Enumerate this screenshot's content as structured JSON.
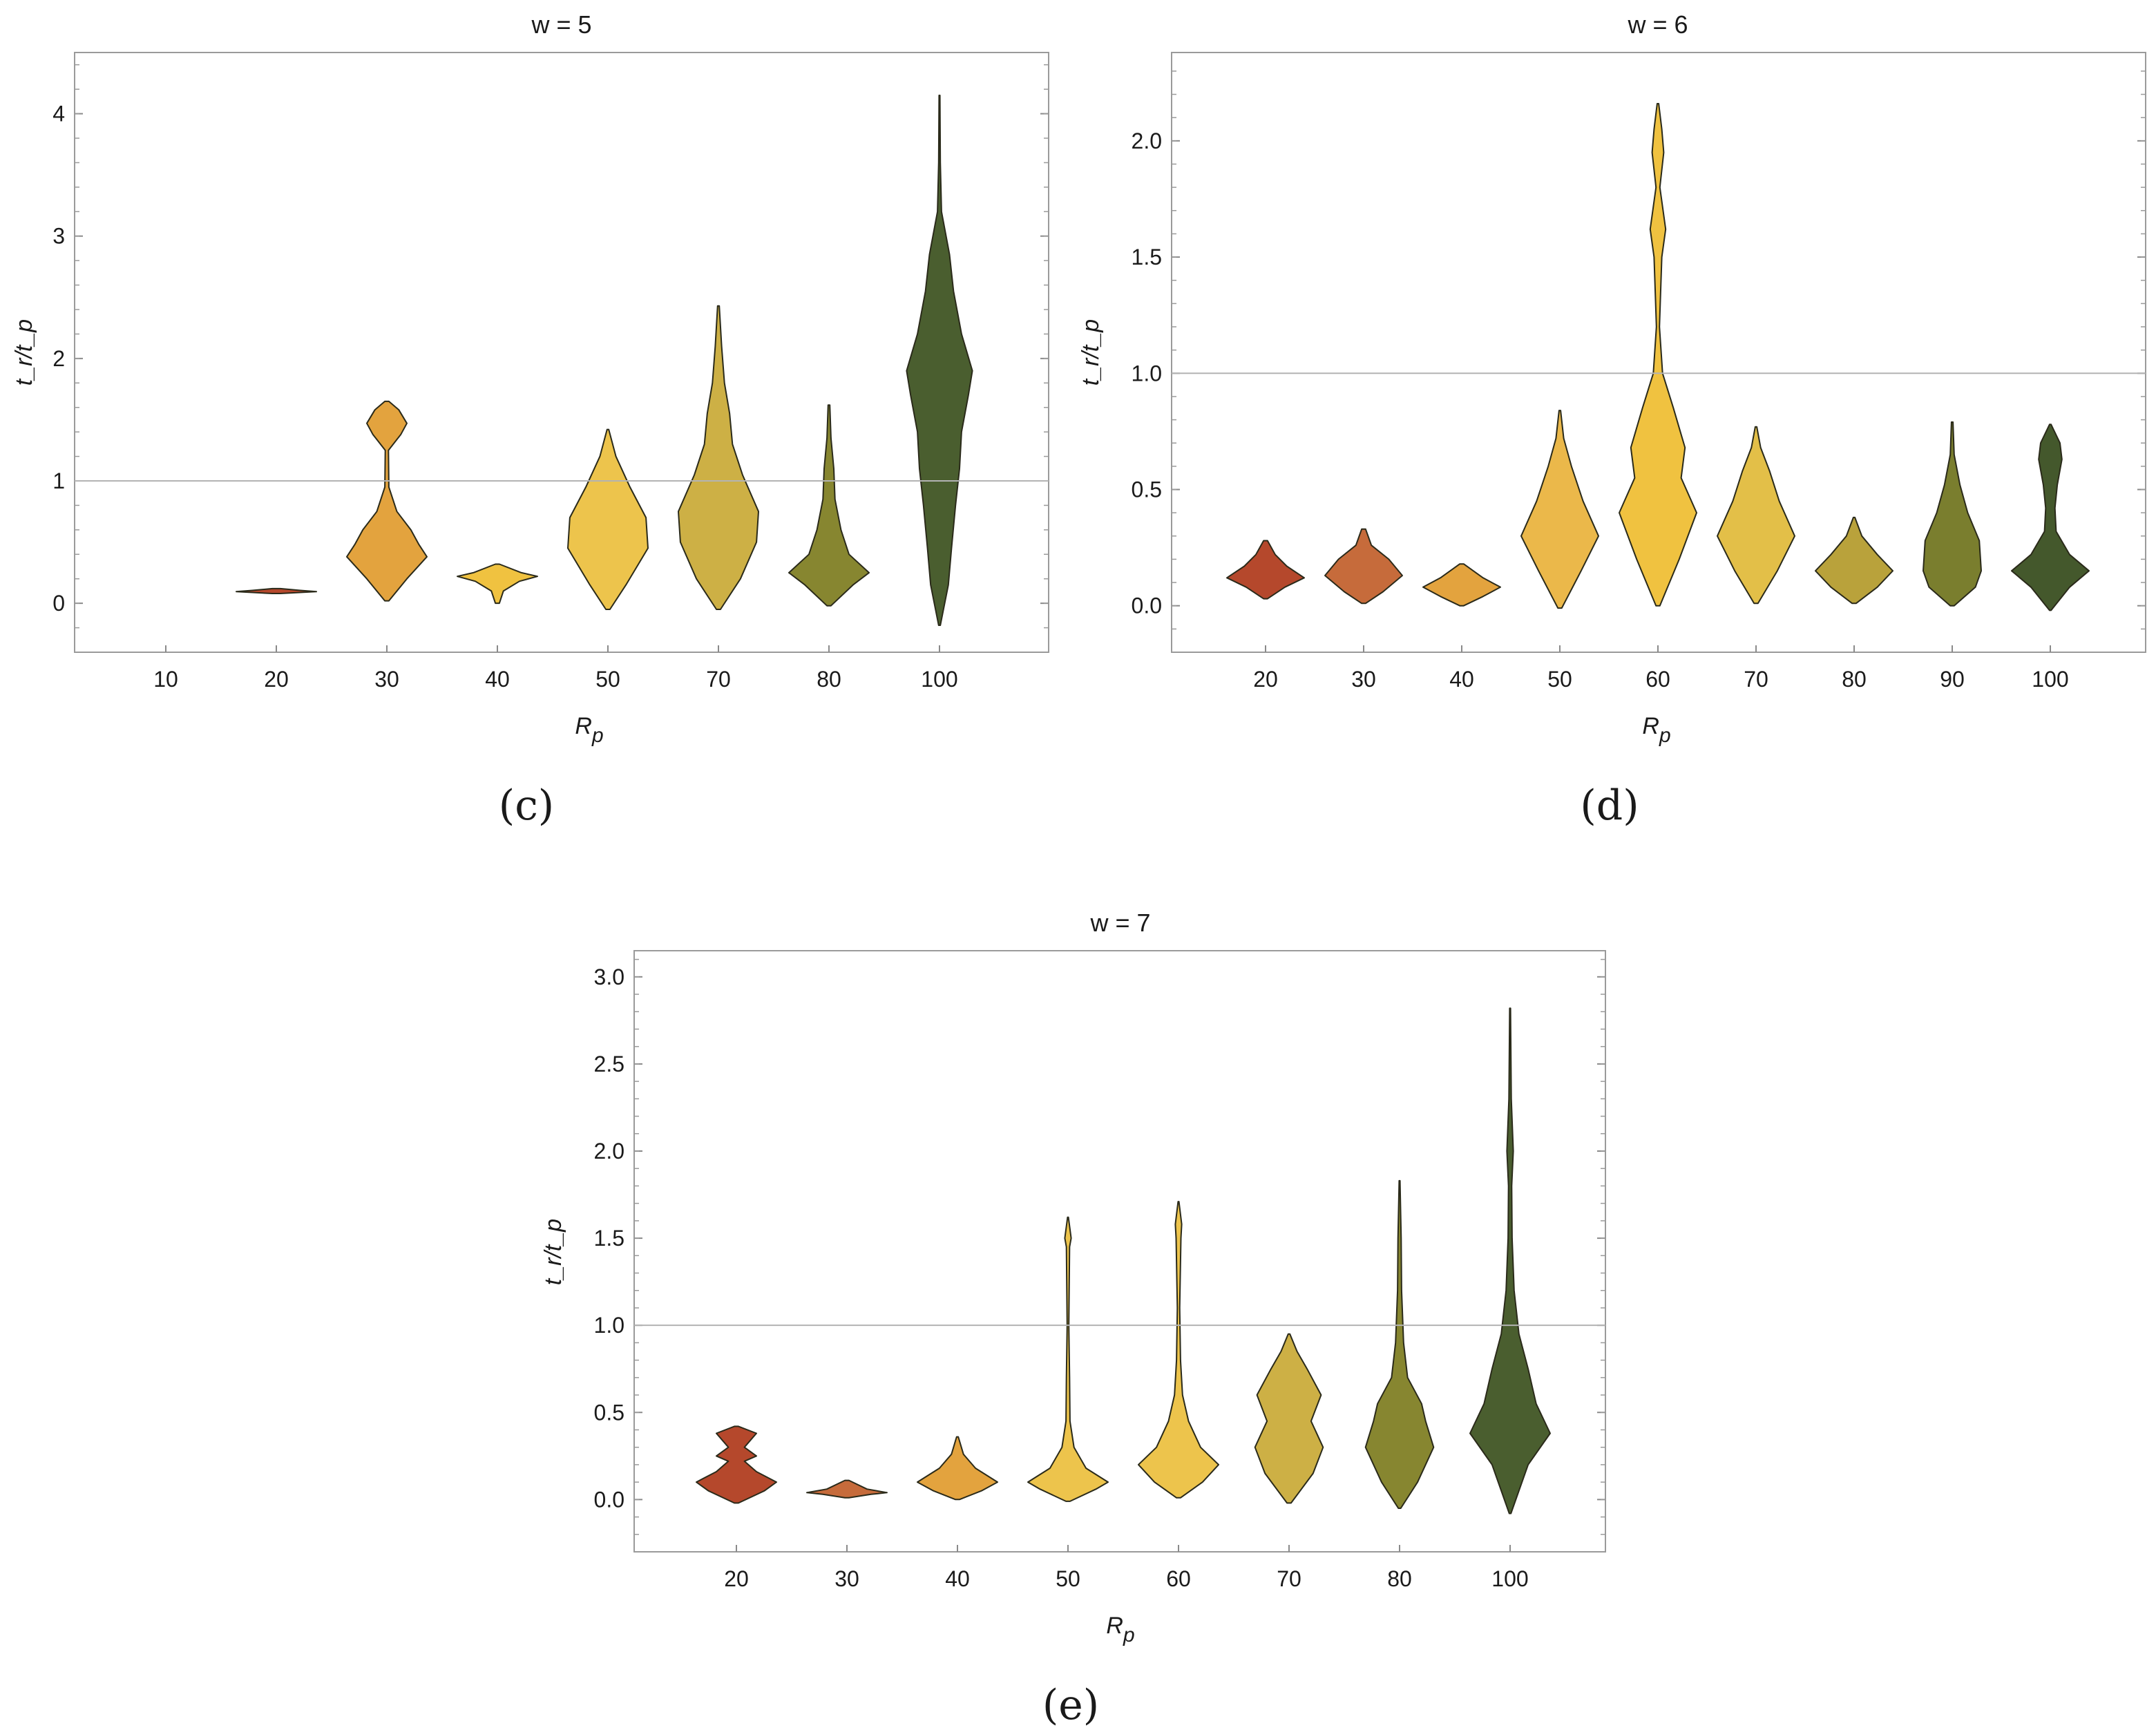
{
  "chart_data": [
    {
      "type": "violin",
      "panel": "(c)",
      "title": "w = 5",
      "xlabel": "R",
      "xlabel_sub": "p",
      "ylabel": "t_r/t_p",
      "ylim": [
        -0.4,
        4.5
      ],
      "yticks": [
        0,
        1,
        2,
        3,
        4
      ],
      "ytick_labels": [
        "0",
        "1",
        "2",
        "3",
        "4"
      ],
      "reference_line": 1,
      "categories": [
        "10",
        "20",
        "30",
        "40",
        "50",
        "70",
        "80",
        "100"
      ],
      "colors": [
        null,
        "#B5482C",
        "#E3A33E",
        "#F0C240",
        "#EDC44C",
        "#CDB045",
        "#878630",
        "#4A5E2F"
      ],
      "violins": [
        null,
        {
          "min": 0.08,
          "max": 0.12,
          "profile": [
            [
              0.08,
              0.1
            ],
            [
              0.095,
              1.0
            ],
            [
              0.105,
              0.6
            ],
            [
              0.12,
              0.1
            ]
          ]
        },
        {
          "min": 0.02,
          "max": 1.65,
          "profile": [
            [
              0.02,
              0.05
            ],
            [
              0.2,
              0.5
            ],
            [
              0.38,
              1.0
            ],
            [
              0.48,
              0.8
            ],
            [
              0.6,
              0.6
            ],
            [
              0.75,
              0.25
            ],
            [
              0.95,
              0.05
            ],
            [
              1.25,
              0.04
            ],
            [
              1.38,
              0.35
            ],
            [
              1.47,
              0.5
            ],
            [
              1.58,
              0.3
            ],
            [
              1.65,
              0.05
            ]
          ]
        },
        {
          "min": 0.0,
          "max": 0.32,
          "profile": [
            [
              0.0,
              0.05
            ],
            [
              0.1,
              0.15
            ],
            [
              0.18,
              0.55
            ],
            [
              0.22,
              1.0
            ],
            [
              0.25,
              0.6
            ],
            [
              0.32,
              0.05
            ]
          ]
        },
        {
          "min": -0.05,
          "max": 1.42,
          "profile": [
            [
              -0.05,
              0.05
            ],
            [
              0.15,
              0.45
            ],
            [
              0.45,
              1.0
            ],
            [
              0.7,
              0.95
            ],
            [
              0.95,
              0.55
            ],
            [
              1.2,
              0.2
            ],
            [
              1.42,
              0.02
            ]
          ]
        },
        {
          "min": -0.05,
          "max": 2.43,
          "profile": [
            [
              -0.05,
              0.05
            ],
            [
              0.2,
              0.55
            ],
            [
              0.5,
              0.95
            ],
            [
              0.75,
              1.0
            ],
            [
              1.05,
              0.6
            ],
            [
              1.3,
              0.35
            ],
            [
              1.55,
              0.28
            ],
            [
              1.8,
              0.15
            ],
            [
              2.1,
              0.08
            ],
            [
              2.43,
              0.02
            ]
          ]
        },
        {
          "min": -0.02,
          "max": 1.62,
          "profile": [
            [
              -0.02,
              0.05
            ],
            [
              0.15,
              0.6
            ],
            [
              0.25,
              1.0
            ],
            [
              0.4,
              0.5
            ],
            [
              0.6,
              0.3
            ],
            [
              0.85,
              0.15
            ],
            [
              1.1,
              0.12
            ],
            [
              1.35,
              0.05
            ],
            [
              1.62,
              0.02
            ]
          ]
        },
        {
          "min": -0.18,
          "max": 4.15,
          "profile": [
            [
              -0.18,
              0.02
            ],
            [
              0.15,
              0.22
            ],
            [
              0.45,
              0.3
            ],
            [
              0.8,
              0.4
            ],
            [
              1.1,
              0.5
            ],
            [
              1.4,
              0.55
            ],
            [
              1.7,
              0.72
            ],
            [
              1.9,
              0.82
            ],
            [
              2.2,
              0.55
            ],
            [
              2.55,
              0.35
            ],
            [
              2.85,
              0.25
            ],
            [
              3.2,
              0.05
            ],
            [
              3.6,
              0.02
            ],
            [
              4.15,
              0.01
            ]
          ]
        }
      ]
    },
    {
      "type": "violin",
      "panel": "(d)",
      "title": "w = 6",
      "xlabel": "R",
      "xlabel_sub": "p",
      "ylabel": "t_r/t_p",
      "ylim": [
        -0.2,
        2.38
      ],
      "yticks": [
        0.0,
        0.5,
        1.0,
        1.5,
        2.0
      ],
      "ytick_labels": [
        "0.0",
        "0.5",
        "1.0",
        "1.5",
        "2.0"
      ],
      "reference_line": 1.0,
      "categories": [
        "20",
        "30",
        "40",
        "50",
        "60",
        "70",
        "80",
        "90",
        "100"
      ],
      "colors": [
        "#B5482C",
        "#C66B3B",
        "#E3A33E",
        "#EBB84A",
        "#F0C240",
        "#E3BF48",
        "#B9A23B",
        "#7A7E2E",
        "#44582C"
      ],
      "violins": [
        {
          "min": 0.03,
          "max": 0.28,
          "profile": [
            [
              0.03,
              0.05
            ],
            [
              0.08,
              0.5
            ],
            [
              0.12,
              1.0
            ],
            [
              0.17,
              0.55
            ],
            [
              0.22,
              0.25
            ],
            [
              0.28,
              0.05
            ]
          ]
        },
        {
          "min": 0.01,
          "max": 0.33,
          "profile": [
            [
              0.01,
              0.05
            ],
            [
              0.06,
              0.5
            ],
            [
              0.13,
              1.0
            ],
            [
              0.2,
              0.65
            ],
            [
              0.26,
              0.2
            ],
            [
              0.33,
              0.05
            ]
          ]
        },
        {
          "min": 0.0,
          "max": 0.18,
          "profile": [
            [
              0.0,
              0.05
            ],
            [
              0.04,
              0.55
            ],
            [
              0.08,
              1.0
            ],
            [
              0.12,
              0.55
            ],
            [
              0.18,
              0.05
            ]
          ]
        },
        {
          "min": -0.01,
          "max": 0.84,
          "profile": [
            [
              -0.01,
              0.05
            ],
            [
              0.15,
              0.55
            ],
            [
              0.3,
              1.0
            ],
            [
              0.45,
              0.6
            ],
            [
              0.6,
              0.3
            ],
            [
              0.72,
              0.1
            ],
            [
              0.84,
              0.02
            ]
          ]
        },
        {
          "min": 0.0,
          "max": 2.16,
          "profile": [
            [
              0.0,
              0.05
            ],
            [
              0.2,
              0.55
            ],
            [
              0.4,
              1.0
            ],
            [
              0.55,
              0.6
            ],
            [
              0.68,
              0.7
            ],
            [
              0.85,
              0.4
            ],
            [
              1.0,
              0.12
            ],
            [
              1.2,
              0.04
            ],
            [
              1.5,
              0.1
            ],
            [
              1.62,
              0.2
            ],
            [
              1.8,
              0.05
            ],
            [
              1.95,
              0.15
            ],
            [
              2.05,
              0.1
            ],
            [
              2.16,
              0.02
            ]
          ]
        },
        {
          "min": 0.01,
          "max": 0.77,
          "profile": [
            [
              0.01,
              0.05
            ],
            [
              0.15,
              0.55
            ],
            [
              0.3,
              1.0
            ],
            [
              0.45,
              0.6
            ],
            [
              0.58,
              0.35
            ],
            [
              0.68,
              0.12
            ],
            [
              0.77,
              0.02
            ]
          ]
        },
        {
          "min": 0.01,
          "max": 0.38,
          "profile": [
            [
              0.01,
              0.05
            ],
            [
              0.08,
              0.6
            ],
            [
              0.15,
              1.0
            ],
            [
              0.22,
              0.6
            ],
            [
              0.3,
              0.2
            ],
            [
              0.38,
              0.02
            ]
          ]
        },
        {
          "min": 0.0,
          "max": 0.79,
          "profile": [
            [
              0.0,
              0.05
            ],
            [
              0.08,
              0.6
            ],
            [
              0.15,
              0.75
            ],
            [
              0.28,
              0.7
            ],
            [
              0.4,
              0.4
            ],
            [
              0.52,
              0.2
            ],
            [
              0.65,
              0.05
            ],
            [
              0.79,
              0.02
            ]
          ]
        },
        {
          "min": -0.02,
          "max": 0.78,
          "profile": [
            [
              -0.02,
              0.02
            ],
            [
              0.08,
              0.5
            ],
            [
              0.15,
              1.0
            ],
            [
              0.22,
              0.5
            ],
            [
              0.32,
              0.15
            ],
            [
              0.42,
              0.12
            ],
            [
              0.52,
              0.18
            ],
            [
              0.63,
              0.3
            ],
            [
              0.7,
              0.25
            ],
            [
              0.78,
              0.02
            ]
          ]
        }
      ]
    },
    {
      "type": "violin",
      "panel": "(e)",
      "title": "w = 7",
      "xlabel": "R",
      "xlabel_sub": "p",
      "ylabel": "t_r/t_p",
      "ylim": [
        -0.3,
        3.15
      ],
      "yticks": [
        0.0,
        0.5,
        1.0,
        1.5,
        2.0,
        2.5,
        3.0
      ],
      "ytick_labels": [
        "0.0",
        "0.5",
        "1.0",
        "1.5",
        "2.0",
        "2.5",
        "3.0"
      ],
      "reference_line": 1.0,
      "categories": [
        "20",
        "30",
        "40",
        "50",
        "60",
        "70",
        "80",
        "100"
      ],
      "colors": [
        "#B5482C",
        "#C66B3B",
        "#E3A33E",
        "#EDC44C",
        "#EDC44C",
        "#CDB045",
        "#878630",
        "#4A5E2F"
      ],
      "violins": [
        {
          "min": -0.02,
          "max": 0.42,
          "profile": [
            [
              -0.02,
              0.05
            ],
            [
              0.05,
              0.7
            ],
            [
              0.1,
              1.0
            ],
            [
              0.16,
              0.5
            ],
            [
              0.22,
              0.2
            ],
            [
              0.25,
              0.5
            ],
            [
              0.3,
              0.2
            ],
            [
              0.38,
              0.5
            ],
            [
              0.42,
              0.05
            ]
          ]
        },
        {
          "min": 0.01,
          "max": 0.11,
          "profile": [
            [
              0.01,
              0.05
            ],
            [
              0.03,
              0.6
            ],
            [
              0.04,
              1.0
            ],
            [
              0.06,
              0.5
            ],
            [
              0.11,
              0.05
            ]
          ]
        },
        {
          "min": 0.0,
          "max": 0.36,
          "profile": [
            [
              0.0,
              0.05
            ],
            [
              0.05,
              0.6
            ],
            [
              0.1,
              1.0
            ],
            [
              0.18,
              0.45
            ],
            [
              0.26,
              0.15
            ],
            [
              0.36,
              0.02
            ]
          ]
        },
        {
          "min": -0.01,
          "max": 1.62,
          "profile": [
            [
              -0.01,
              0.05
            ],
            [
              0.06,
              0.7
            ],
            [
              0.1,
              1.0
            ],
            [
              0.18,
              0.45
            ],
            [
              0.3,
              0.15
            ],
            [
              0.45,
              0.05
            ],
            [
              0.7,
              0.04
            ],
            [
              1.0,
              0.02
            ],
            [
              1.45,
              0.04
            ],
            [
              1.5,
              0.08
            ],
            [
              1.62,
              0.01
            ]
          ]
        },
        {
          "min": 0.01,
          "max": 1.71,
          "profile": [
            [
              0.01,
              0.05
            ],
            [
              0.1,
              0.6
            ],
            [
              0.2,
              1.0
            ],
            [
              0.3,
              0.55
            ],
            [
              0.45,
              0.25
            ],
            [
              0.6,
              0.1
            ],
            [
              0.8,
              0.05
            ],
            [
              1.1,
              0.03
            ],
            [
              1.5,
              0.06
            ],
            [
              1.58,
              0.08
            ],
            [
              1.71,
              0.01
            ]
          ]
        },
        {
          "min": -0.02,
          "max": 0.95,
          "profile": [
            [
              -0.02,
              0.05
            ],
            [
              0.15,
              0.6
            ],
            [
              0.3,
              0.85
            ],
            [
              0.45,
              0.55
            ],
            [
              0.6,
              0.8
            ],
            [
              0.75,
              0.45
            ],
            [
              0.85,
              0.2
            ],
            [
              0.95,
              0.02
            ]
          ]
        },
        {
          "min": -0.05,
          "max": 1.83,
          "profile": [
            [
              -0.05,
              0.03
            ],
            [
              0.1,
              0.45
            ],
            [
              0.3,
              0.85
            ],
            [
              0.45,
              0.65
            ],
            [
              0.55,
              0.55
            ],
            [
              0.7,
              0.2
            ],
            [
              0.9,
              0.1
            ],
            [
              1.2,
              0.05
            ],
            [
              1.5,
              0.04
            ],
            [
              1.83,
              0.01
            ]
          ]
        },
        {
          "min": -0.08,
          "max": 2.82,
          "profile": [
            [
              -0.08,
              0.02
            ],
            [
              0.2,
              0.45
            ],
            [
              0.38,
              1.0
            ],
            [
              0.55,
              0.65
            ],
            [
              0.75,
              0.45
            ],
            [
              0.95,
              0.22
            ],
            [
              1.2,
              0.1
            ],
            [
              1.5,
              0.05
            ],
            [
              1.8,
              0.04
            ],
            [
              2.0,
              0.08
            ],
            [
              2.3,
              0.03
            ],
            [
              2.82,
              0.01
            ]
          ]
        }
      ]
    }
  ]
}
